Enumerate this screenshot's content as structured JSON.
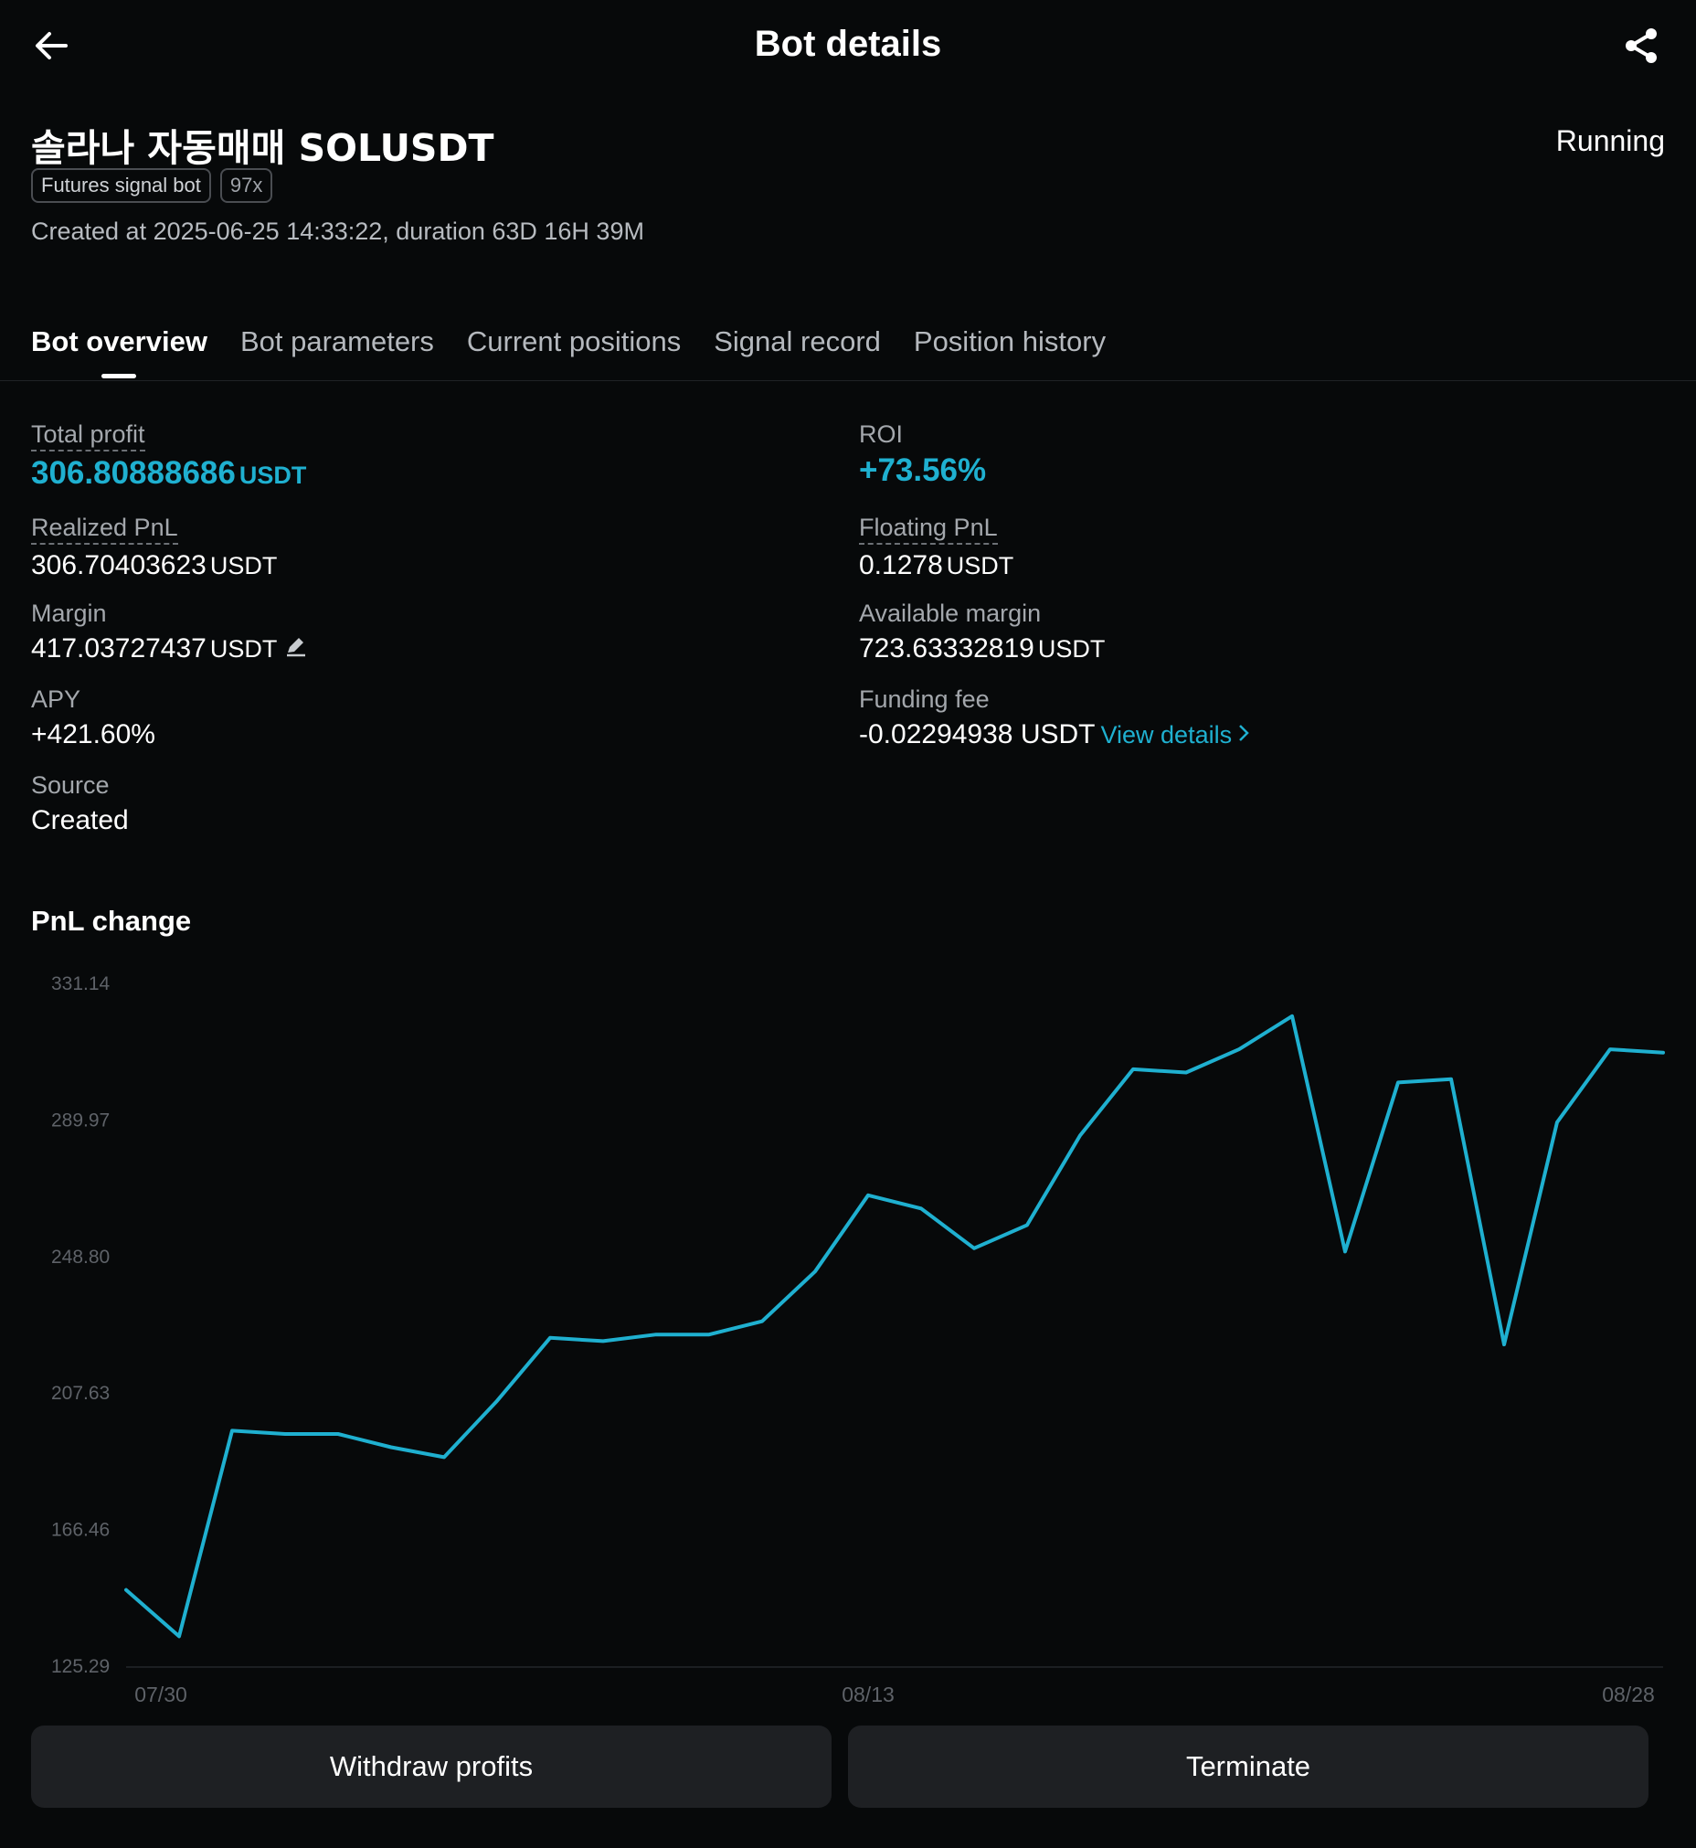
{
  "header": {
    "title": "Bot details",
    "back_icon": "arrow-left-icon",
    "share_icon": "share-icon"
  },
  "bot": {
    "name": "솔라나 자동매매 SOLUSDT",
    "status": "Running",
    "tags": [
      "Futures signal bot",
      "97x"
    ],
    "created": "Created at 2025-06-25 14:33:22, duration 63D 16H 39M"
  },
  "tabs": [
    "Bot overview",
    "Bot parameters",
    "Current positions",
    "Signal record",
    "Position history"
  ],
  "stats": {
    "total_profit": {
      "label": "Total profit",
      "value": "306.80888686",
      "unit": "USDT"
    },
    "roi": {
      "label": "ROI",
      "value": "+73.56%"
    },
    "realized_pnl": {
      "label": "Realized PnL",
      "value": "306.70403623",
      "unit": "USDT"
    },
    "floating_pnl": {
      "label": "Floating PnL",
      "value": "0.1278",
      "unit": "USDT"
    },
    "margin": {
      "label": "Margin",
      "value": "417.03727437",
      "unit": "USDT"
    },
    "available_margin": {
      "label": "Available margin",
      "value": "723.63332819",
      "unit": "USDT"
    },
    "apy": {
      "label": "APY",
      "value": "+421.60%"
    },
    "funding_fee": {
      "label": "Funding fee",
      "value": "-0.02294938 USDT",
      "link": "View details"
    },
    "source": {
      "label": "Source",
      "value": "Created"
    }
  },
  "chart_section_title": "PnL change",
  "chart_data": {
    "type": "line",
    "title": "PnL change",
    "y_ticks": [
      "331.14",
      "289.97",
      "248.80",
      "207.63",
      "166.46",
      "125.29"
    ],
    "ylim": [
      125.29,
      331.14
    ],
    "x_ticks": [
      "07/30",
      "08/13",
      "08/28"
    ],
    "color": "#1fb0d0",
    "grid": false,
    "series": [
      {
        "values": [
          148,
          134,
          196,
          195,
          195,
          191,
          188,
          205,
          224,
          223,
          225,
          225,
          229,
          244,
          267,
          263,
          251,
          258,
          285,
          305,
          304,
          311,
          321,
          250,
          301,
          302,
          222,
          289,
          311,
          310
        ]
      }
    ]
  },
  "buttons": {
    "withdraw": "Withdraw profits",
    "terminate": "Terminate"
  }
}
